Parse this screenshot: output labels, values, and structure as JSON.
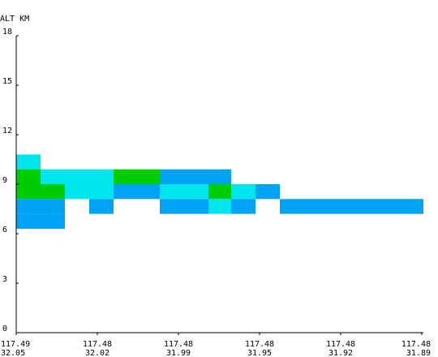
{
  "chart_data": {
    "type": "heatmap",
    "ylabel": "ALT KM",
    "y_ticks": [
      0,
      3,
      6,
      9,
      12,
      15,
      18
    ],
    "ylim": [
      0,
      18
    ],
    "x_ticks": [
      {
        "lon": "117.49",
        "lat": "32.05"
      },
      {
        "lon": "117.48",
        "lat": "32.02"
      },
      {
        "lon": "117.48",
        "lat": "31.99"
      },
      {
        "lon": "117.48",
        "lat": "31.95"
      },
      {
        "lon": "117.48",
        "lat": "31.92"
      },
      {
        "lon": "117.48",
        "lat": "31.89"
      }
    ],
    "x_range": [
      0,
      5
    ],
    "colors": {
      "cyan": "#00e5ee",
      "green": "#00cd00",
      "blue": "#00a2f3"
    },
    "cells": [
      {
        "x0": 0.0,
        "x1": 0.3,
        "y0": 9.9,
        "y1": 10.8,
        "color": "cyan"
      },
      {
        "x0": 0.0,
        "x1": 0.3,
        "y0": 9.0,
        "y1": 9.9,
        "color": "green"
      },
      {
        "x0": 0.3,
        "x1": 1.2,
        "y0": 9.0,
        "y1": 9.9,
        "color": "cyan"
      },
      {
        "x0": 1.2,
        "x1": 1.77,
        "y0": 9.0,
        "y1": 9.9,
        "color": "green"
      },
      {
        "x0": 1.77,
        "x1": 2.65,
        "y0": 9.0,
        "y1": 9.9,
        "color": "blue"
      },
      {
        "x0": 0.0,
        "x1": 0.6,
        "y0": 8.1,
        "y1": 9.0,
        "color": "green"
      },
      {
        "x0": 0.6,
        "x1": 1.2,
        "y0": 8.1,
        "y1": 9.0,
        "color": "cyan"
      },
      {
        "x0": 1.2,
        "x1": 1.77,
        "y0": 8.1,
        "y1": 9.0,
        "color": "blue"
      },
      {
        "x0": 1.77,
        "x1": 2.37,
        "y0": 8.1,
        "y1": 9.0,
        "color": "cyan"
      },
      {
        "x0": 2.37,
        "x1": 2.65,
        "y0": 8.1,
        "y1": 9.0,
        "color": "green"
      },
      {
        "x0": 2.65,
        "x1": 2.95,
        "y0": 8.1,
        "y1": 9.0,
        "color": "cyan"
      },
      {
        "x0": 2.95,
        "x1": 3.25,
        "y0": 8.1,
        "y1": 9.0,
        "color": "blue"
      },
      {
        "x0": 0.0,
        "x1": 0.6,
        "y0": 7.2,
        "y1": 8.1,
        "color": "blue"
      },
      {
        "x0": 0.9,
        "x1": 1.2,
        "y0": 7.2,
        "y1": 8.1,
        "color": "blue"
      },
      {
        "x0": 1.77,
        "x1": 2.37,
        "y0": 7.2,
        "y1": 8.1,
        "color": "blue"
      },
      {
        "x0": 2.37,
        "x1": 2.65,
        "y0": 7.2,
        "y1": 8.1,
        "color": "cyan"
      },
      {
        "x0": 2.65,
        "x1": 2.95,
        "y0": 7.2,
        "y1": 8.1,
        "color": "blue"
      },
      {
        "x0": 3.25,
        "x1": 5.02,
        "y0": 7.2,
        "y1": 8.1,
        "color": "blue"
      },
      {
        "x0": 0.0,
        "x1": 0.6,
        "y0": 6.3,
        "y1": 7.2,
        "color": "blue"
      }
    ]
  }
}
